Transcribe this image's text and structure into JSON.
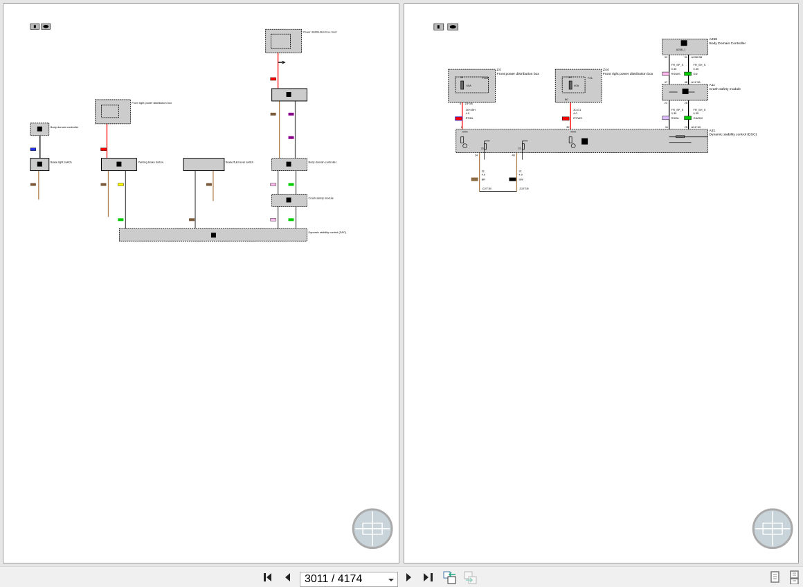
{
  "viewer": {
    "page_indicator": "3011 / 4174",
    "current_page": 3011,
    "total_pages": 4174
  },
  "toolbar": {
    "buttons": [
      "first-page",
      "previous-page",
      "next-page",
      "last-page",
      "sync-left",
      "sync-right",
      "single-page-view",
      "continuous-view"
    ]
  },
  "left_page": {
    "components": {
      "f44": "Power distribution box, boot",
      "a46": "Front right power distribution box",
      "a258a": "Body domain controller",
      "s84": "Brake light switch",
      "s29": "Parking brake button",
      "s30": "Brake fluid level switch",
      "a258b": "Body domain controller",
      "a11": "Crash safety module",
      "a31": "Dynamic stability control (DSC)"
    }
  },
  "right_page": {
    "z4": {
      "id": "Z4",
      "name": "Front power distribution box",
      "fuse": "F404",
      "rating": "60A",
      "pin_in": "30",
      "pin_out": "4",
      "conn": "Z4*1B"
    },
    "z44": {
      "id": "Z44",
      "name": "Front right power distribution box",
      "fuse": "F21",
      "rating": "40A",
      "pin_in": "30",
      "pin_out": "80"
    },
    "a258": {
      "id": "A258",
      "name": "Body Domain Controller",
      "conn": "A258_1",
      "pin1": "33",
      "pin2": "31",
      "conn2": "A258*9B"
    },
    "a11": {
      "id": "A11",
      "name": "Crash safety module",
      "pin1": "47",
      "pin2": "48",
      "pin3": "24",
      "pin4": "25",
      "conn": "A11*1B"
    },
    "a31": {
      "id": "A31",
      "name": "Dynamic stability control (DSC)",
      "pin1": "1",
      "pin2": "32",
      "pin3": "41",
      "pin4": "25",
      "pin5": "14",
      "pin6": "46",
      "gnd": "31",
      "conn": "A31*1B"
    },
    "wires": [
      {
        "signal": "30+45H",
        "size": "4.0",
        "color": "RT/BL"
      },
      {
        "signal": "30-G1",
        "size": "4.0",
        "color": "RT/WS"
      },
      {
        "signal": "FR_SP_S",
        "size": "0.35",
        "color": "RS/WS"
      },
      {
        "signal": "FR_SH_S",
        "size": "0.35",
        "color": "GN"
      },
      {
        "signal": "FR_SP_S",
        "size": "0.35",
        "color": "RS/BL"
      },
      {
        "signal": "FR_SH_S",
        "size": "0.35",
        "color": "GN/SW"
      },
      {
        "signal": "31",
        "size": "4.0",
        "color": "BR"
      },
      {
        "signal": "31",
        "size": "4.0",
        "color": "SW"
      }
    ],
    "ground": "Z10*1B"
  },
  "colors": {
    "component_fill": "#cccccc",
    "power_wire": "#ff0000",
    "signal_wire": "#000000",
    "ground_wire": "#b08050",
    "viewer_bg": "#e6e6e6"
  }
}
